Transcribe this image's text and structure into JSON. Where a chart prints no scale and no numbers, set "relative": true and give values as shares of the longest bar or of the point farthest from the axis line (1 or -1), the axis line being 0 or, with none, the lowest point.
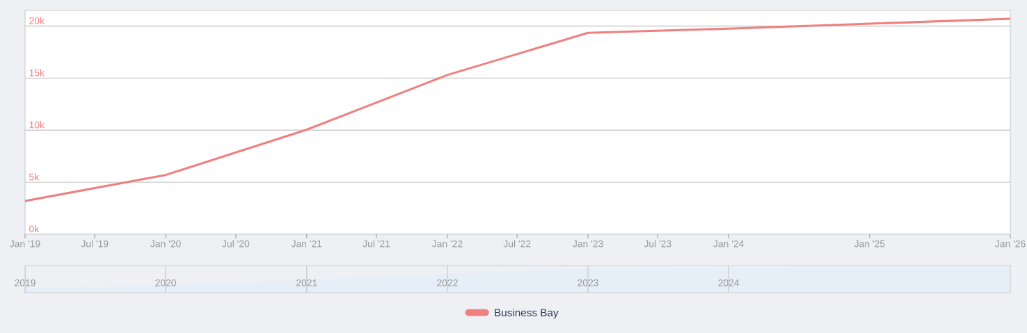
{
  "chart_data": [
    {
      "type": "line",
      "x": [
        "2019-01",
        "2020-01",
        "2021-01",
        "2022-01",
        "2023-01",
        "2024-01",
        "2026-01"
      ],
      "series": [
        {
          "name": "Business Bay",
          "color": "#f07f7f",
          "values": [
            3200,
            5700,
            10050,
            15300,
            19350,
            19750,
            20700
          ]
        }
      ],
      "xlim": [
        "2019-01",
        "2026-01"
      ],
      "xticks": [
        {
          "value": "2019-01",
          "label": "Jan '19"
        },
        {
          "value": "2019-07",
          "label": "Jul '19"
        },
        {
          "value": "2020-01",
          "label": "Jan '20"
        },
        {
          "value": "2020-07",
          "label": "Jul '20"
        },
        {
          "value": "2021-01",
          "label": "Jan '21"
        },
        {
          "value": "2021-07",
          "label": "Jul '21"
        },
        {
          "value": "2022-01",
          "label": "Jan '22"
        },
        {
          "value": "2022-07",
          "label": "Jul '22"
        },
        {
          "value": "2023-01",
          "label": "Jan '23"
        },
        {
          "value": "2023-07",
          "label": "Jul '23"
        },
        {
          "value": "2024-01",
          "label": "Jan '24"
        },
        {
          "value": "2025-01",
          "label": "Jan '25"
        },
        {
          "value": "2026-01",
          "label": "Jan '26"
        }
      ],
      "ylim": [
        0,
        21500
      ],
      "yticks": [
        {
          "value": 0,
          "label": "0k"
        },
        {
          "value": 5000,
          "label": "5k"
        },
        {
          "value": 10000,
          "label": "10k"
        },
        {
          "value": 15000,
          "label": "15k"
        },
        {
          "value": 20000,
          "label": "20k"
        }
      ],
      "grid": "y",
      "legend": "bottom",
      "line_style": "solid",
      "marker": "none"
    },
    {
      "type": "area",
      "relative": true,
      "x": [
        "2019-01",
        "2020-01",
        "2021-01",
        "2022-01",
        "2023-01",
        "2024-01",
        "2026-01"
      ],
      "series": [
        {
          "color": "#e6eef7",
          "values": [
            0.15,
            0.28,
            0.49,
            0.74,
            0.93,
            0.95,
            1.0
          ]
        }
      ],
      "xlim": [
        "2019-01",
        "2026-01"
      ],
      "xticks": [
        {
          "value": "2019-01",
          "label": "2019"
        },
        {
          "value": "2020-01",
          "label": "2020"
        },
        {
          "value": "2021-01",
          "label": "2021"
        },
        {
          "value": "2022-01",
          "label": "2022"
        },
        {
          "value": "2023-01",
          "label": "2023"
        },
        {
          "value": "2024-01",
          "label": "2024"
        }
      ],
      "grid": "x",
      "tick_labels": "x"
    }
  ]
}
